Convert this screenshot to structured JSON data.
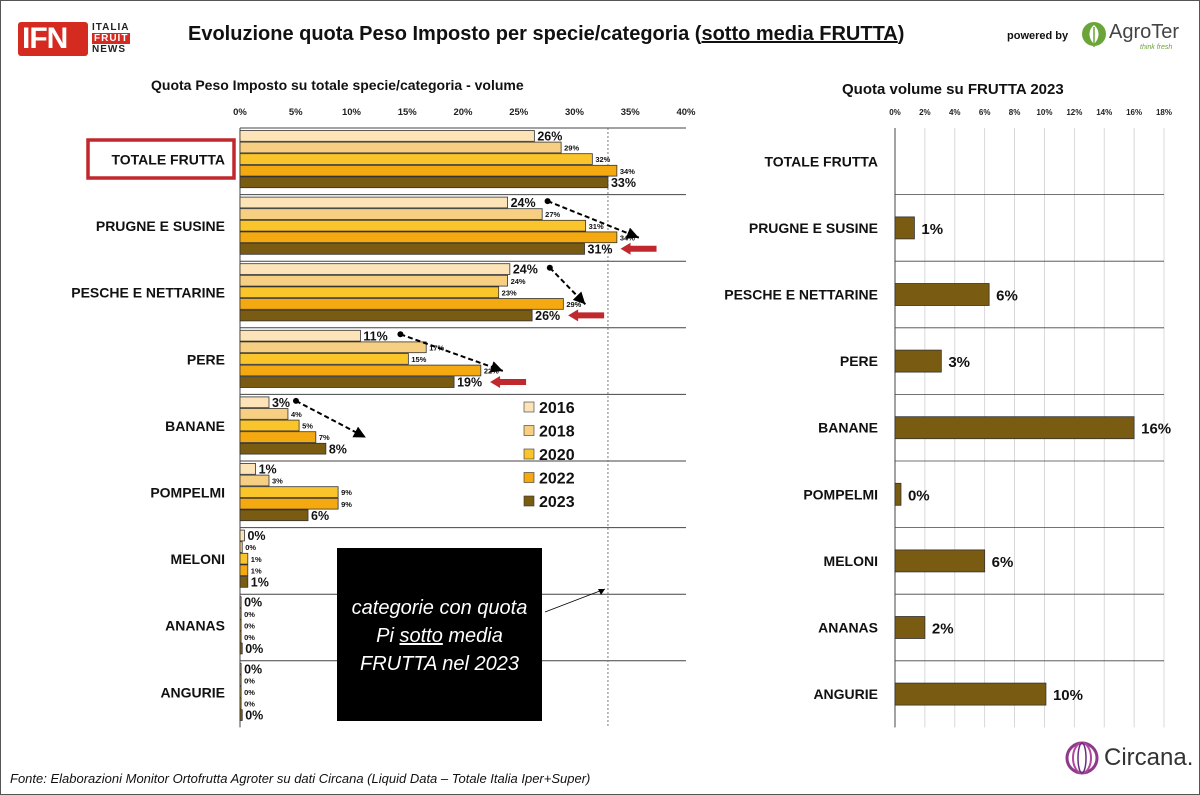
{
  "header": {
    "logo_ifn": "IFN",
    "logo_sub": [
      "ITALIA",
      "FRUIT",
      "NEWS"
    ],
    "title_prefix": "Evoluzione quota Peso Imposto per specie/categoria (",
    "title_underlined": "sotto media FRUTTA",
    "title_suffix": ")",
    "powered_by": "powered by",
    "agroter_name": "AgroTer",
    "agroter_tagline": "think fresh"
  },
  "note_box": {
    "line1": "categorie con quota",
    "line2_prefix": "Pi ",
    "line2_underlined": "sotto",
    "line2_suffix": " media",
    "line3": "FRUTTA nel 2023"
  },
  "footer": {
    "source": "Fonte: Elaborazioni Monitor Ortofrutta Agroter su dati  Circana (Liquid Data – Totale Italia Iper+Super)",
    "circana": "Circana."
  },
  "colors": {
    "s2016": "#FCE4B8",
    "s2018": "#F6CF83",
    "s2020": "#F9C52B",
    "s2022": "#F3A90F",
    "s2023": "#7A5B12",
    "highlight_box": "#C0282D",
    "arrow_red": "#C0282D",
    "note_bg": "#000000"
  },
  "chart_data": [
    {
      "type": "bar",
      "orientation": "horizontal",
      "title": "Quota Peso Imposto su totale specie/categoria  - volume",
      "xlim": [
        0,
        40
      ],
      "ticks": [
        "0%",
        "5%",
        "10%",
        "15%",
        "20%",
        "25%",
        "30%",
        "35%",
        "40%"
      ],
      "reference_line": 33,
      "categories": [
        "TOTALE FRUTTA",
        "PRUGNE E SUSINE",
        "PESCHE E NETTARINE",
        "PERE",
        "BANANE",
        "POMPELMI",
        "MELONI",
        "ANANAS",
        "ANGURIE"
      ],
      "series": [
        {
          "name": "2016",
          "values": [
            26.4,
            24.0,
            24.2,
            10.8,
            2.6,
            1.4,
            0.4,
            0.1,
            0.1
          ],
          "labels": [
            "26%",
            "24%",
            "24%",
            "11%",
            "3%",
            "1%",
            "0%",
            "0%",
            "0%"
          ]
        },
        {
          "name": "2018",
          "values": [
            28.8,
            27.1,
            24.0,
            16.7,
            4.3,
            2.6,
            0.2,
            0.1,
            0.1
          ],
          "labels": [
            "29%",
            "27%",
            "24%",
            "17%",
            "4%",
            "3%",
            "0%",
            "0%",
            "0%"
          ]
        },
        {
          "name": "2020",
          "values": [
            31.6,
            31.0,
            23.2,
            15.1,
            5.3,
            8.8,
            0.7,
            0.1,
            0.1
          ],
          "labels": [
            "32%",
            "31%",
            "23%",
            "15%",
            "5%",
            "9%",
            "1%",
            "0%",
            "0%"
          ]
        },
        {
          "name": "2022",
          "values": [
            33.8,
            33.8,
            29.0,
            21.6,
            6.8,
            8.8,
            0.7,
            0.1,
            0.1
          ],
          "labels": [
            "34%",
            "34%",
            "29%",
            "22%",
            "7%",
            "9%",
            "1%",
            "0%",
            "0%"
          ]
        },
        {
          "name": "2023",
          "values": [
            33.0,
            30.9,
            26.2,
            19.2,
            7.7,
            6.1,
            0.7,
            0.2,
            0.2
          ],
          "labels": [
            "33%",
            "31%",
            "26%",
            "19%",
            "8%",
            "6%",
            "1%",
            "0%",
            "0%"
          ]
        }
      ],
      "legend": [
        "2016",
        "2018",
        "2020",
        "2022",
        "2023"
      ],
      "legend_position": "center-right",
      "grid": false
    },
    {
      "type": "bar",
      "orientation": "horizontal",
      "title": "Quota volume su FRUTTA 2023",
      "xlim": [
        0,
        18
      ],
      "ticks": [
        "0%",
        "2%",
        "4%",
        "6%",
        "8%",
        "10%",
        "12%",
        "14%",
        "16%",
        "18%"
      ],
      "categories": [
        "TOTALE FRUTTA",
        "PRUGNE E SUSINE",
        "PESCHE E NETTARINE",
        "PERE",
        "BANANE",
        "POMPELMI",
        "MELONI",
        "ANANAS",
        "ANGURIE"
      ],
      "values": [
        null,
        1.3,
        6.3,
        3.1,
        16.0,
        0.4,
        6.0,
        2.0,
        10.1
      ],
      "labels": [
        "",
        "1%",
        "6%",
        "3%",
        "16%",
        "0%",
        "6%",
        "2%",
        "10%"
      ],
      "grid": true
    }
  ]
}
